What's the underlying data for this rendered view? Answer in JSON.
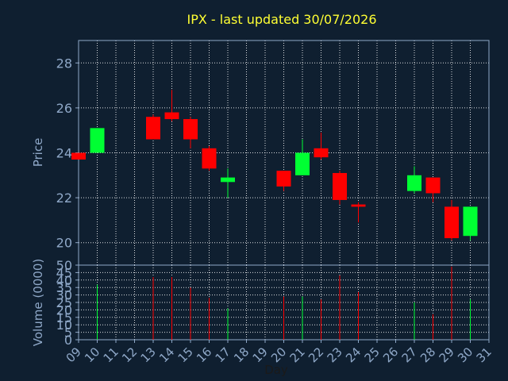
{
  "chart_data": [
    {
      "type": "candlestick",
      "title": "IPX - last updated 30/07/2026",
      "ylabel": "Price",
      "ylim": [
        19,
        29
      ],
      "yticks": [
        20,
        22,
        24,
        26,
        28
      ],
      "grid": true,
      "colors": {
        "up": "#00ff33",
        "down": "#ff0000",
        "title": "#ffff33",
        "axis_text": "#8fa8c8",
        "grid": "#ffffff",
        "background": "#0f1f30"
      },
      "candles": [
        {
          "day": 9,
          "open": 24.0,
          "high": 24.0,
          "low": 23.7,
          "close": 23.7
        },
        {
          "day": 10,
          "open": 24.0,
          "high": 25.1,
          "low": 24.0,
          "close": 25.1
        },
        {
          "day": 13,
          "open": 25.6,
          "high": 25.7,
          "low": 24.6,
          "close": 24.6
        },
        {
          "day": 14,
          "open": 25.8,
          "high": 26.8,
          "low": 25.4,
          "close": 25.5
        },
        {
          "day": 15,
          "open": 25.5,
          "high": 25.6,
          "low": 24.2,
          "close": 24.6
        },
        {
          "day": 16,
          "open": 24.2,
          "high": 24.3,
          "low": 23.2,
          "close": 23.3
        },
        {
          "day": 17,
          "open": 22.7,
          "high": 23.3,
          "low": 22.0,
          "close": 22.9
        },
        {
          "day": 20,
          "open": 23.2,
          "high": 23.2,
          "low": 22.3,
          "close": 22.5
        },
        {
          "day": 21,
          "open": 23.0,
          "high": 24.6,
          "low": 23.0,
          "close": 24.0
        },
        {
          "day": 22,
          "open": 24.2,
          "high": 24.9,
          "low": 23.7,
          "close": 23.8
        },
        {
          "day": 23,
          "open": 23.1,
          "high": 23.2,
          "low": 21.7,
          "close": 21.9
        },
        {
          "day": 24,
          "open": 21.7,
          "high": 21.8,
          "low": 20.9,
          "close": 21.6
        },
        {
          "day": 27,
          "open": 22.3,
          "high": 23.4,
          "low": 22.2,
          "close": 23.0
        },
        {
          "day": 28,
          "open": 22.9,
          "high": 22.9,
          "low": 21.8,
          "close": 22.2
        },
        {
          "day": 29,
          "open": 21.6,
          "high": 21.9,
          "low": 20.1,
          "close": 20.2
        },
        {
          "day": 30,
          "open": 20.3,
          "high": 21.6,
          "low": 20.1,
          "close": 21.6
        }
      ]
    },
    {
      "type": "bar",
      "ylabel": "Volume (0000)",
      "xlabel": "Day",
      "ylim": [
        0,
        50
      ],
      "yticks": [
        0,
        5,
        10,
        15,
        20,
        25,
        30,
        35,
        40,
        45,
        50
      ],
      "xlim": [
        9,
        31
      ],
      "xticks": [
        "09",
        "10",
        "11",
        "12",
        "13",
        "14",
        "15",
        "16",
        "17",
        "18",
        "19",
        "20",
        "21",
        "22",
        "23",
        "24",
        "25",
        "26",
        "27",
        "28",
        "29",
        "30",
        "31"
      ],
      "grid": true,
      "bars": [
        {
          "day": 10,
          "value": 37,
          "color": "up"
        },
        {
          "day": 13,
          "value": 42,
          "color": "down"
        },
        {
          "day": 14,
          "value": 42,
          "color": "down"
        },
        {
          "day": 15,
          "value": 35,
          "color": "down"
        },
        {
          "day": 16,
          "value": 28,
          "color": "down"
        },
        {
          "day": 17,
          "value": 21,
          "color": "up"
        },
        {
          "day": 20,
          "value": 29,
          "color": "down"
        },
        {
          "day": 21,
          "value": 29,
          "color": "up"
        },
        {
          "day": 22,
          "value": 27,
          "color": "down"
        },
        {
          "day": 23,
          "value": 43,
          "color": "down"
        },
        {
          "day": 24,
          "value": 32,
          "color": "down"
        },
        {
          "day": 27,
          "value": 25,
          "color": "up"
        },
        {
          "day": 28,
          "value": 17,
          "color": "down"
        },
        {
          "day": 29,
          "value": 49,
          "color": "down"
        },
        {
          "day": 30,
          "value": 27,
          "color": "up"
        }
      ]
    }
  ]
}
